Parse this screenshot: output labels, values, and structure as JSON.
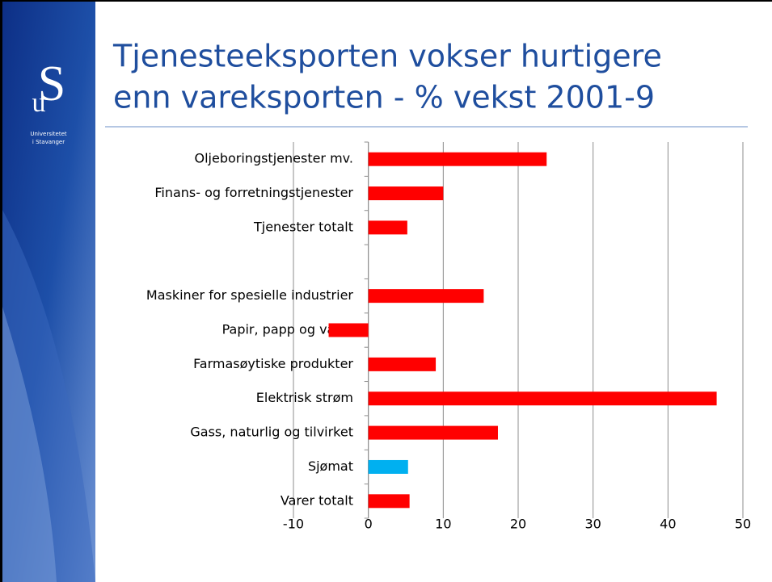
{
  "logo": {
    "letters": [
      "u",
      "S"
    ],
    "lines": [
      "Universitetet",
      "i Stavanger"
    ]
  },
  "chart_data": {
    "type": "barh",
    "title": [
      "Tjenesteeksporten vokser hurtigere",
      "enn vareksporten - % vekst 2001-9"
    ],
    "categories": [
      "Oljeboringstjenester mv.",
      "Finans- og forretningstjenester",
      "Tjenester totalt",
      null,
      "Maskiner for spesielle industrier",
      "Papir, papp og varer",
      "Farmasøytiske produkter",
      "Elektrisk strøm",
      "Gass, naturlig og tilvirket",
      "Sjømat",
      "Varer totalt"
    ],
    "values": [
      23.8,
      10,
      5.2,
      null,
      15.4,
      -5.3,
      9,
      46.5,
      17.3,
      5.3,
      5.5
    ],
    "colors": [
      "#ff0000",
      "#ff0000",
      "#ff0000",
      null,
      "#ff0000",
      "#ff0000",
      "#ff0000",
      "#ff0000",
      "#ff0000",
      "#00b0f0",
      "#ff0000"
    ],
    "xlim": [
      -10,
      50
    ],
    "xticks": [
      -10,
      0,
      10,
      20,
      30,
      40,
      50
    ],
    "grid": true
  }
}
